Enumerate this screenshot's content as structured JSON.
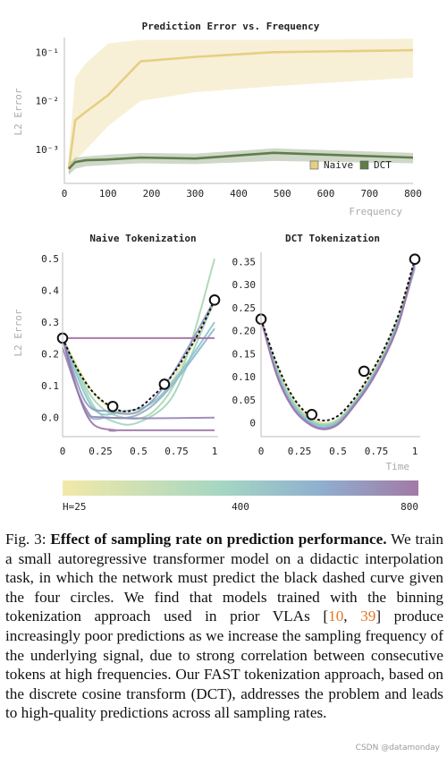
{
  "chart_data": [
    {
      "type": "line",
      "title": "Prediction Error vs. Frequency",
      "xlabel": "Frequency",
      "ylabel": "L2 Error",
      "yscale": "log",
      "xlim": [
        0,
        800
      ],
      "ylim": [
        0.0002,
        0.2
      ],
      "xticks": [
        "0",
        "100",
        "200",
        "300",
        "400",
        "500",
        "600",
        "700",
        "800"
      ],
      "yticks": [
        "10⁻¹",
        "10⁻²",
        "10⁻³"
      ],
      "legend_position": "bottom-right",
      "series": [
        {
          "name": "Naive",
          "color": "#e6cf83",
          "x": [
            10,
            25,
            50,
            100,
            175,
            300,
            480,
            800
          ],
          "y": [
            0.0004,
            0.004,
            0.006,
            0.013,
            0.065,
            0.08,
            0.1,
            0.11
          ],
          "band_low": [
            0.0003,
            0.0006,
            0.001,
            0.003,
            0.01,
            0.015,
            0.02,
            0.03
          ],
          "band_high": [
            0.0008,
            0.03,
            0.06,
            0.15,
            0.18,
            0.18,
            0.18,
            0.19
          ]
        },
        {
          "name": "DCT",
          "color": "#5f7d4a",
          "x": [
            10,
            25,
            50,
            100,
            175,
            300,
            480,
            800
          ],
          "y": [
            0.0004,
            0.00055,
            0.0006,
            0.00062,
            0.00068,
            0.00065,
            0.00085,
            0.00068
          ],
          "band_low": [
            0.0003,
            0.0004,
            0.00045,
            0.00048,
            0.00052,
            0.0005,
            0.00058,
            0.00052
          ],
          "band_high": [
            0.0005,
            0.00068,
            0.00072,
            0.00078,
            0.00085,
            0.00082,
            0.00105,
            0.00085
          ]
        }
      ]
    },
    {
      "type": "line",
      "title": "Naive Tokenization",
      "xlabel": "",
      "ylabel": "L2 Error",
      "xlim": [
        0,
        1
      ],
      "ylim": [
        -0.06,
        0.52
      ],
      "xticks": [
        "0",
        "0.25",
        "0.5",
        "0.75",
        "1"
      ],
      "yticks": [
        "0.0",
        "0.1",
        "0.2",
        "0.3",
        "0.4",
        "0.5"
      ],
      "target": {
        "x": [
          0,
          0.1,
          0.2,
          0.3,
          0.4,
          0.5,
          0.6,
          0.7,
          0.8,
          0.9,
          1.0
        ],
        "y": [
          0.25,
          0.15,
          0.08,
          0.04,
          0.02,
          0.03,
          0.07,
          0.12,
          0.19,
          0.27,
          0.37
        ]
      },
      "points": [
        {
          "x": 0,
          "y": 0.25
        },
        {
          "x": 0.33,
          "y": 0.035
        },
        {
          "x": 0.67,
          "y": 0.105
        },
        {
          "x": 1.0,
          "y": 0.37
        }
      ],
      "predictions": [
        {
          "color": "#e8e2a0",
          "x": [
            0,
            0.2,
            0.4,
            0.6,
            0.8,
            1.0
          ],
          "y": [
            0.25,
            0.08,
            0.015,
            0.04,
            0.18,
            0.36
          ]
        },
        {
          "color": "#a8d6b0",
          "x": [
            0,
            0.2,
            0.4,
            0.6,
            0.8,
            1.0
          ],
          "y": [
            0.25,
            0.06,
            0.0,
            0.02,
            0.17,
            0.5
          ]
        },
        {
          "color": "#9fd3c1",
          "x": [
            0,
            0.2,
            0.35,
            0.5,
            0.7,
            0.85,
            1.0
          ],
          "y": [
            0.25,
            0.04,
            -0.015,
            -0.015,
            0.05,
            0.2,
            0.37
          ]
        },
        {
          "color": "#86c5c9",
          "x": [
            0,
            0.2,
            0.4,
            0.6,
            0.8,
            1.0
          ],
          "y": [
            0.25,
            0.03,
            0.02,
            0.05,
            0.16,
            0.3
          ]
        },
        {
          "color": "#8fb2cc",
          "x": [
            0,
            0.15,
            0.3,
            0.5,
            0.7,
            1.0
          ],
          "y": [
            0.25,
            0.02,
            0.0,
            0.01,
            0.09,
            0.28
          ]
        },
        {
          "color": "#8e98c4",
          "x": [
            0,
            0.15,
            0.3,
            0.5,
            0.7,
            1.0
          ],
          "y": [
            0.25,
            0.05,
            0.02,
            0.02,
            0.12,
            0.37
          ]
        },
        {
          "color": "#9584b6",
          "x": [
            0,
            0.15,
            0.3,
            1.0
          ],
          "y": [
            0.22,
            0.03,
            0.0,
            0.0
          ]
        },
        {
          "color": "#9a73a6",
          "x": [
            0,
            0.1,
            0.2,
            0.35,
            0.35,
            1.0
          ],
          "y": [
            0.25,
            0.08,
            -0.02,
            -0.04,
            -0.04,
            -0.04
          ]
        },
        {
          "color": "#a06ba0",
          "x": [
            0,
            1.0
          ],
          "y": [
            0.25,
            0.25
          ]
        }
      ]
    },
    {
      "type": "line",
      "title": "DCT Tokenization",
      "xlabel": "Time",
      "ylabel": "",
      "xlim": [
        0,
        1
      ],
      "ylim": [
        -0.03,
        0.37
      ],
      "xticks": [
        "0",
        "0.25",
        "0.5",
        "0.75",
        "1"
      ],
      "yticks": [
        "0",
        "0.05",
        "0.10",
        "0.15",
        "0.20",
        "0.25",
        "0.30",
        "0.35"
      ],
      "target": {
        "x": [
          0,
          0.1,
          0.2,
          0.3,
          0.4,
          0.5,
          0.6,
          0.7,
          0.8,
          0.9,
          1.0
        ],
        "y": [
          0.225,
          0.13,
          0.06,
          0.02,
          0.005,
          0.015,
          0.05,
          0.1,
          0.16,
          0.24,
          0.355
        ]
      },
      "points": [
        {
          "x": 0,
          "y": 0.225
        },
        {
          "x": 0.33,
          "y": 0.018
        },
        {
          "x": 0.67,
          "y": 0.112
        },
        {
          "x": 1.0,
          "y": 0.355
        }
      ],
      "predictions": [
        {
          "color": "#e8e2a0",
          "x": [
            0,
            0.1,
            0.2,
            0.3,
            0.4,
            0.5,
            0.6,
            0.7,
            0.8,
            0.9,
            1.0
          ],
          "y": [
            0.225,
            0.125,
            0.055,
            0.015,
            0.0,
            0.008,
            0.045,
            0.095,
            0.155,
            0.235,
            0.35
          ]
        },
        {
          "color": "#a8d6b0",
          "x": [
            0,
            0.1,
            0.2,
            0.3,
            0.4,
            0.5,
            0.6,
            0.7,
            0.8,
            0.9,
            1.0
          ],
          "y": [
            0.225,
            0.12,
            0.05,
            0.012,
            -0.003,
            0.006,
            0.042,
            0.09,
            0.15,
            0.23,
            0.345
          ]
        },
        {
          "color": "#86c5c9",
          "x": [
            0,
            0.1,
            0.2,
            0.3,
            0.4,
            0.5,
            0.6,
            0.7,
            0.8,
            0.9,
            1.0
          ],
          "y": [
            0.225,
            0.115,
            0.045,
            0.008,
            -0.006,
            0.003,
            0.04,
            0.088,
            0.148,
            0.228,
            0.34
          ]
        },
        {
          "color": "#8fb2cc",
          "x": [
            0,
            0.1,
            0.2,
            0.3,
            0.4,
            0.5,
            0.6,
            0.7,
            0.8,
            0.9,
            1.0
          ],
          "y": [
            0.225,
            0.11,
            0.04,
            0.005,
            -0.01,
            0.0,
            0.038,
            0.085,
            0.145,
            0.225,
            0.335
          ]
        },
        {
          "color": "#8e98c4",
          "x": [
            0,
            0.1,
            0.2,
            0.3,
            0.4,
            0.5,
            0.6,
            0.7,
            0.8,
            0.9,
            1.0
          ],
          "y": [
            0.225,
            0.108,
            0.038,
            0.002,
            -0.012,
            -0.002,
            0.036,
            0.083,
            0.143,
            0.222,
            0.345
          ]
        },
        {
          "color": "#9a73a6",
          "x": [
            0,
            0.1,
            0.2,
            0.3,
            0.4,
            0.5,
            0.6,
            0.7,
            0.8,
            0.9,
            1.0
          ],
          "y": [
            0.225,
            0.105,
            0.035,
            0.0,
            -0.014,
            -0.004,
            0.034,
            0.08,
            0.14,
            0.22,
            0.35
          ]
        }
      ]
    }
  ],
  "colorbar": {
    "labels": [
      "H=25",
      "400",
      "800"
    ],
    "colors": [
      "#f2e9a8",
      "#a5d6c2",
      "#8fb0cf",
      "#a27aa6"
    ]
  },
  "caption": {
    "fig_label": "Fig. 3: ",
    "bold": "Effect of sampling rate on prediction performance.",
    "text_1": " We train a small autoregressive transformer model on a didactic interpolation task, in which the network must predict the black dashed curve given the four circles. We find that models trained with the binning tokenization approach used in prior VLAs [",
    "ref_1": "10",
    "sep": ", ",
    "ref_2": "39",
    "text_2": "] produce increasingly poor predictions as we increase the sampling frequency of the underlying signal, due to strong correlation between consecutive tokens at high frequencies. Our FAST tokenization approach, based on the discrete cosine transform (DCT), addresses the problem and leads to high-quality predictions across all sampling rates."
  },
  "watermark": "CSDN @datamonday"
}
